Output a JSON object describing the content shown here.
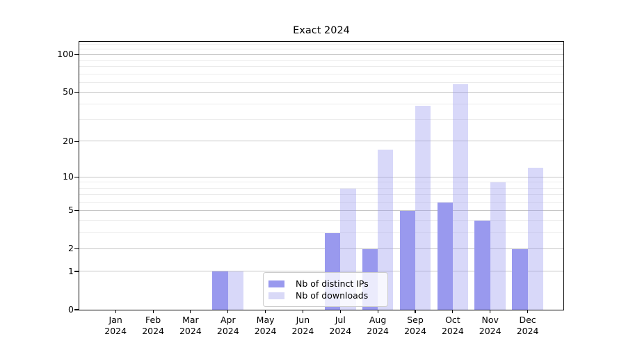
{
  "title": "Exact 2024",
  "chart_data": {
    "type": "bar",
    "title": "Exact 2024",
    "y_scale": "log1p",
    "categories": [
      "Jan 2024",
      "Feb 2024",
      "Mar 2024",
      "Apr 2024",
      "May 2024",
      "Jun 2024",
      "Jul 2024",
      "Aug 2024",
      "Sep 2024",
      "Oct 2024",
      "Nov 2024",
      "Dec 2024"
    ],
    "series": [
      {
        "name": "Nb of distinct IPs",
        "color": "#9999ee",
        "bar_opacity": 1,
        "values": [
          0,
          0,
          0,
          1,
          0,
          0,
          3,
          2,
          5,
          6,
          4,
          2
        ]
      },
      {
        "name": "Nb of downloads",
        "color": "#d9d9f7",
        "bar_base_color_rgba": "rgba(153,153,238,0.38)",
        "bar_opacity": 0.38,
        "values": [
          0,
          0,
          0,
          1,
          0,
          0,
          8,
          17,
          39,
          58,
          9,
          12
        ]
      }
    ],
    "y_ticks": [
      0,
      1,
      2,
      5,
      10,
      20,
      50,
      100
    ],
    "y_minor_gridlines": [
      3,
      4,
      6,
      7,
      8,
      9,
      30,
      40,
      60,
      70,
      80,
      90,
      110,
      120
    ],
    "ylim": [
      0,
      130
    ],
    "xlabel": "",
    "ylabel": "",
    "grid": true,
    "legend_position": "lower center",
    "axis_color": "#000000",
    "major_grid_color": "#c6c6c6",
    "minor_grid_color": "#ebebeb"
  }
}
